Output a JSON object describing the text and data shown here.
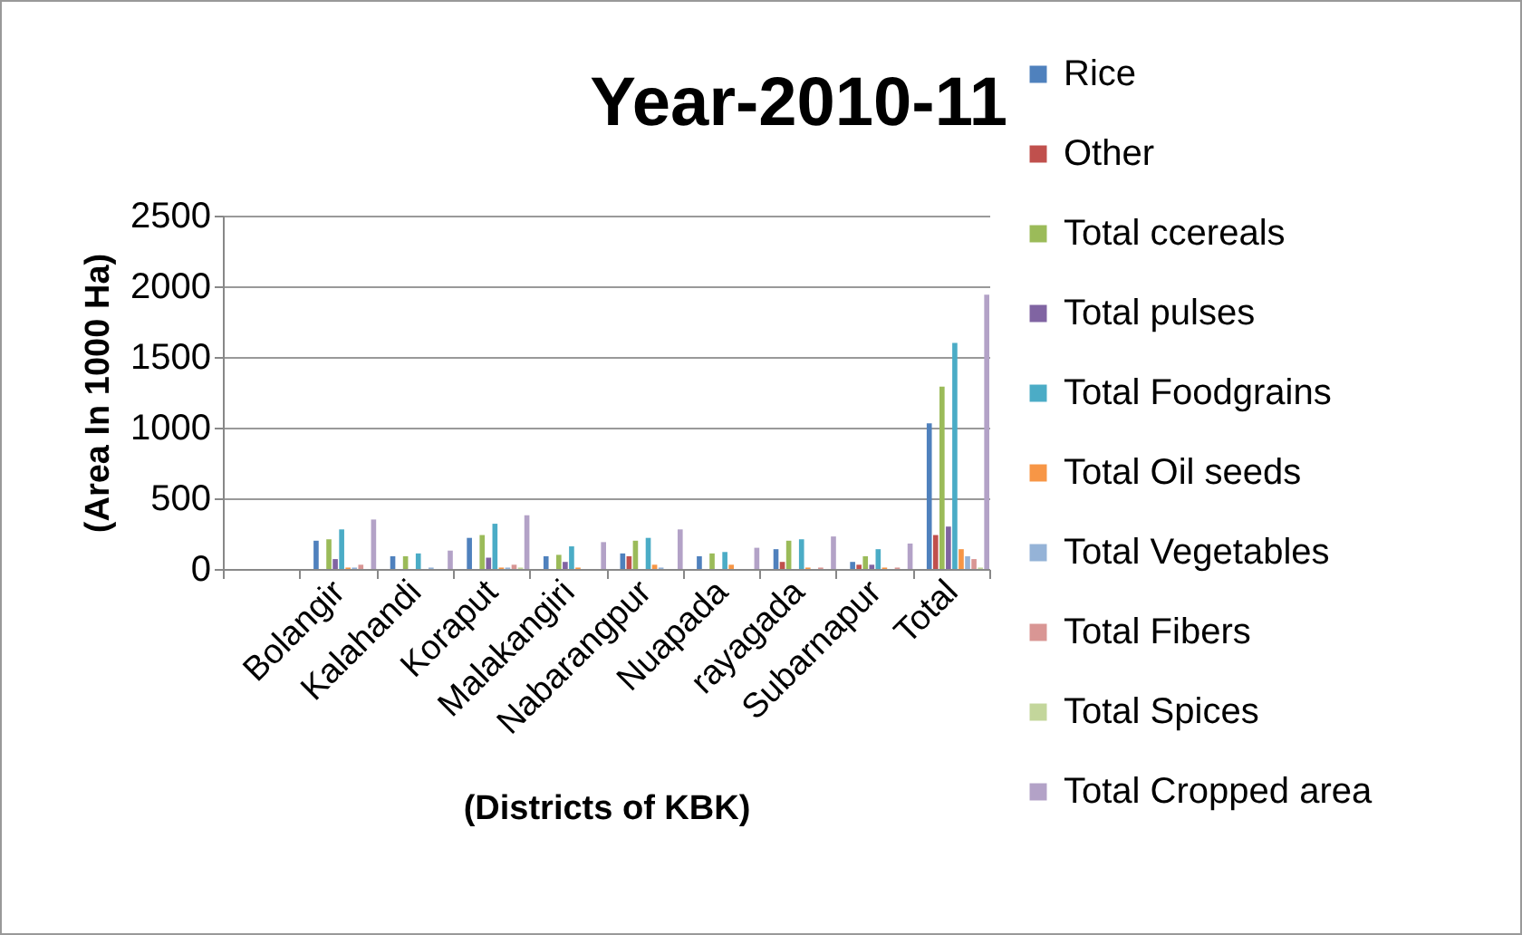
{
  "chart_data": {
    "type": "bar",
    "title": "Year-2010-11",
    "xlabel": "(Districts of KBK)",
    "ylabel": "(Area In 1000 Ha)",
    "categories": [
      null,
      "Bolangir",
      "Kalahandi",
      "Koraput",
      "Malakangiri",
      "Nabarangpur",
      "Nuapada",
      "rayagada",
      "Subarnapur",
      "Total"
    ],
    "series": [
      {
        "name": "Rice",
        "color": "#4f81bd",
        "values": [
          null,
          200,
          90,
          220,
          90,
          110,
          90,
          140,
          50,
          1030
        ]
      },
      {
        "name": "Other",
        "color": "#c0504d",
        "values": [
          null,
          0,
          0,
          null,
          0,
          90,
          0,
          50,
          30,
          240
        ]
      },
      {
        "name": "Total ccereals",
        "color": "#9bbb59",
        "values": [
          null,
          210,
          90,
          240,
          100,
          200,
          110,
          200,
          90,
          1290
        ]
      },
      {
        "name": "Total pulses",
        "color": "#8064a2",
        "values": [
          null,
          70,
          null,
          80,
          50,
          null,
          null,
          null,
          30,
          300
        ]
      },
      {
        "name": "Total Foodgrains",
        "color": "#4bacc6",
        "values": [
          null,
          280,
          110,
          320,
          160,
          220,
          120,
          210,
          140,
          1600
        ]
      },
      {
        "name": "Total Oil seeds",
        "color": "#f79646",
        "values": [
          null,
          10,
          0,
          10,
          10,
          30,
          30,
          10,
          10,
          140
        ]
      },
      {
        "name": "Total Vegetables",
        "color": "#95b3d7",
        "values": [
          null,
          10,
          10,
          10,
          0,
          10,
          0,
          0,
          0,
          90
        ]
      },
      {
        "name": "Total Fibers",
        "color": "#d99694",
        "values": [
          null,
          30,
          0,
          30,
          0,
          0,
          0,
          10,
          10,
          70
        ]
      },
      {
        "name": "Total Spices",
        "color": "#c3d69b",
        "values": [
          null,
          0,
          0,
          10,
          0,
          0,
          0,
          0,
          0,
          10
        ]
      },
      {
        "name": "Total Cropped area",
        "color": "#b3a2c7",
        "values": [
          null,
          350,
          130,
          380,
          190,
          280,
          150,
          230,
          180,
          1940
        ]
      }
    ],
    "ylim": [
      0,
      2500
    ],
    "yticks": [
      0,
      500,
      1000,
      1500,
      2000,
      2500
    ],
    "grid": "y",
    "legend": "right"
  }
}
